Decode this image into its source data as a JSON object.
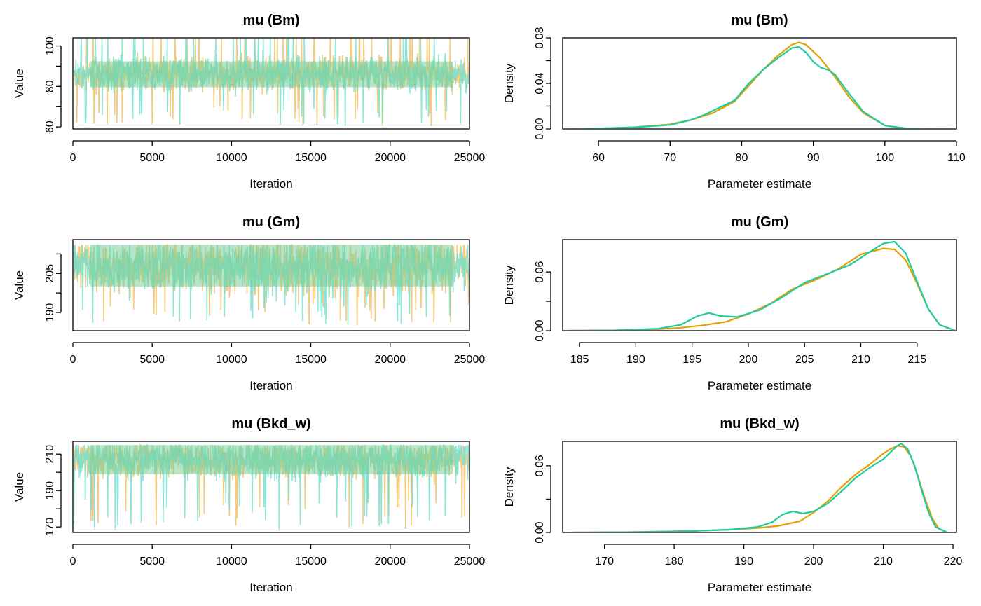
{
  "colors": {
    "chain1": "#E69F00",
    "chain2": "#1FCBA0",
    "trace_chain1": "#F2C97A",
    "trace_chain2": "#70E0CE",
    "trace_overlap": "#7ACF9A"
  },
  "chart_data": [
    {
      "type": "line",
      "subtype": "trace",
      "title": "mu (Bm)",
      "xlabel": "Iteration",
      "ylabel": "Value",
      "xlim": [
        0,
        25000
      ],
      "ylim": [
        59,
        104
      ],
      "xticks": [
        0,
        5000,
        10000,
        15000,
        20000,
        25000
      ],
      "yticks": [
        60,
        70,
        80,
        90,
        100
      ],
      "ytick_labels": [
        "60",
        "",
        "80",
        "",
        "100"
      ],
      "trace": {
        "center": 86,
        "spread": 4,
        "low": 60,
        "high": 105,
        "low_spikes": 70,
        "seed": 11
      },
      "series": [
        {
          "name": "",
          "color_key": "trace_chain1"
        },
        {
          "name": "",
          "color_key": "trace_chain2"
        }
      ]
    },
    {
      "type": "line",
      "subtype": "density",
      "title": "mu (Bm)",
      "xlabel": "Parameter estimate",
      "ylabel": "Density",
      "xlim": [
        55,
        110
      ],
      "ylim": [
        0,
        0.08
      ],
      "xticks": [
        60,
        70,
        80,
        90,
        100,
        110
      ],
      "yticks": [
        0.0,
        0.02,
        0.04,
        0.06,
        0.08
      ],
      "ytick_labels": [
        "0.00",
        "",
        "0.04",
        "",
        "0.08"
      ],
      "series": [
        {
          "name": "",
          "color_key": "chain1",
          "x": [
            56.2,
            60,
            65,
            70,
            73,
            76,
            79,
            81,
            83,
            85,
            87,
            88,
            89,
            91,
            93,
            95,
            97,
            100,
            103,
            106,
            108.7
          ],
          "y": [
            0,
            0.0005,
            0.0015,
            0.004,
            0.008,
            0.014,
            0.024,
            0.038,
            0.052,
            0.064,
            0.074,
            0.076,
            0.074,
            0.062,
            0.046,
            0.028,
            0.014,
            0.003,
            0.0005,
            0,
            0
          ]
        },
        {
          "name": "",
          "color_key": "chain2",
          "x": [
            56.2,
            60,
            65,
            70,
            73,
            75,
            77,
            79,
            81,
            83,
            85,
            87,
            88,
            89,
            90,
            91,
            92,
            93,
            95,
            97,
            100,
            103,
            106.8
          ],
          "y": [
            0,
            0.0005,
            0.0015,
            0.0035,
            0.008,
            0.013,
            0.019,
            0.025,
            0.04,
            0.052,
            0.062,
            0.071,
            0.072,
            0.067,
            0.059,
            0.054,
            0.052,
            0.048,
            0.031,
            0.015,
            0.003,
            0.0003,
            0
          ]
        }
      ]
    },
    {
      "type": "line",
      "subtype": "trace",
      "title": "mu (Gm)",
      "xlabel": "Iteration",
      "ylabel": "Value",
      "xlim": [
        0,
        25000
      ],
      "ylim": [
        183,
        218
      ],
      "xticks": [
        0,
        5000,
        10000,
        15000,
        20000,
        25000
      ],
      "yticks": [
        190,
        197.5,
        205,
        212.5
      ],
      "ytick_labels": [
        "190",
        "",
        "205",
        ""
      ],
      "trace": {
        "center": 208,
        "spread": 5,
        "low": 185,
        "high": 216,
        "low_spikes": 193,
        "seed": 23
      },
      "series": [
        {
          "name": "",
          "color_key": "trace_chain1"
        },
        {
          "name": "",
          "color_key": "trace_chain2"
        }
      ]
    },
    {
      "type": "line",
      "subtype": "density",
      "title": "mu (Gm)",
      "xlabel": "Parameter estimate",
      "ylabel": "Density",
      "xlim": [
        183.5,
        218.5
      ],
      "ylim": [
        0,
        0.093
      ],
      "xticks": [
        185,
        190,
        195,
        200,
        205,
        210,
        215
      ],
      "yticks": [
        0.0,
        0.03,
        0.06
      ],
      "ytick_labels": [
        "0.00",
        "",
        "0.06"
      ],
      "series": [
        {
          "name": "",
          "color_key": "chain1",
          "x": [
            184,
            188,
            192,
            194,
            196,
            198,
            200,
            202,
            204,
            206,
            208,
            210,
            212,
            213,
            214,
            215,
            216,
            217,
            218.4
          ],
          "y": [
            0,
            0.0003,
            0.0015,
            0.003,
            0.0055,
            0.009,
            0.017,
            0.028,
            0.043,
            0.052,
            0.063,
            0.078,
            0.084,
            0.083,
            0.072,
            0.048,
            0.022,
            0.006,
            0
          ]
        },
        {
          "name": "",
          "color_key": "chain2",
          "x": [
            184,
            188,
            192,
            194,
            195.5,
            196.5,
            197.5,
            199,
            201,
            203,
            205,
            207,
            209,
            211,
            212,
            213,
            214,
            215,
            216,
            217,
            218.4
          ],
          "y": [
            0,
            0.0003,
            0.002,
            0.006,
            0.015,
            0.018,
            0.015,
            0.014,
            0.021,
            0.034,
            0.049,
            0.058,
            0.067,
            0.082,
            0.089,
            0.091,
            0.079,
            0.05,
            0.022,
            0.006,
            0
          ]
        }
      ]
    },
    {
      "type": "line",
      "subtype": "trace",
      "title": "mu (Bkd_w)",
      "xlabel": "Iteration",
      "ylabel": "Value",
      "xlim": [
        0,
        25000
      ],
      "ylim": [
        167,
        217
      ],
      "xticks": [
        0,
        5000,
        10000,
        15000,
        20000,
        25000
      ],
      "yticks": [
        170,
        180,
        190,
        200,
        210
      ],
      "ytick_labels": [
        "170",
        "",
        "190",
        "",
        "210"
      ],
      "trace": {
        "center": 207,
        "spread": 5,
        "low": 168,
        "high": 215,
        "low_spikes": 185,
        "seed": 37
      },
      "series": [
        {
          "name": "",
          "color_key": "trace_chain1"
        },
        {
          "name": "",
          "color_key": "trace_chain2"
        }
      ]
    },
    {
      "type": "line",
      "subtype": "density",
      "title": "mu (Bkd_w)",
      "xlabel": "Parameter estimate",
      "ylabel": "Density",
      "xlim": [
        164,
        220.5
      ],
      "ylim": [
        0,
        0.082
      ],
      "xticks": [
        170,
        180,
        190,
        200,
        210,
        220
      ],
      "yticks": [
        0.0,
        0.03,
        0.06
      ],
      "ytick_labels": [
        "0.00",
        "",
        "0.06"
      ],
      "series": [
        {
          "name": "",
          "color_key": "chain1",
          "x": [
            165.5,
            175,
            182,
            188,
            192,
            195,
            198,
            200,
            202,
            204,
            206,
            208,
            210,
            211,
            212,
            213,
            214,
            215,
            216,
            217,
            218,
            219.2
          ],
          "y": [
            0,
            0.0004,
            0.0012,
            0.0025,
            0.004,
            0.006,
            0.01,
            0.018,
            0.028,
            0.041,
            0.052,
            0.061,
            0.071,
            0.075,
            0.078,
            0.077,
            0.068,
            0.05,
            0.03,
            0.013,
            0.003,
            0
          ]
        },
        {
          "name": "",
          "color_key": "chain2",
          "x": [
            165.5,
            175,
            182,
            188,
            192,
            194,
            195.5,
            197,
            198.5,
            200,
            202,
            204,
            206,
            208,
            210,
            211,
            212,
            212.6,
            213.5,
            214.5,
            215.5,
            216.5,
            217.5,
            219.2
          ],
          "y": [
            0,
            0.0004,
            0.0012,
            0.0025,
            0.005,
            0.009,
            0.016,
            0.019,
            0.017,
            0.019,
            0.026,
            0.037,
            0.049,
            0.058,
            0.066,
            0.072,
            0.078,
            0.08,
            0.075,
            0.06,
            0.038,
            0.018,
            0.005,
            0
          ]
        }
      ]
    }
  ]
}
